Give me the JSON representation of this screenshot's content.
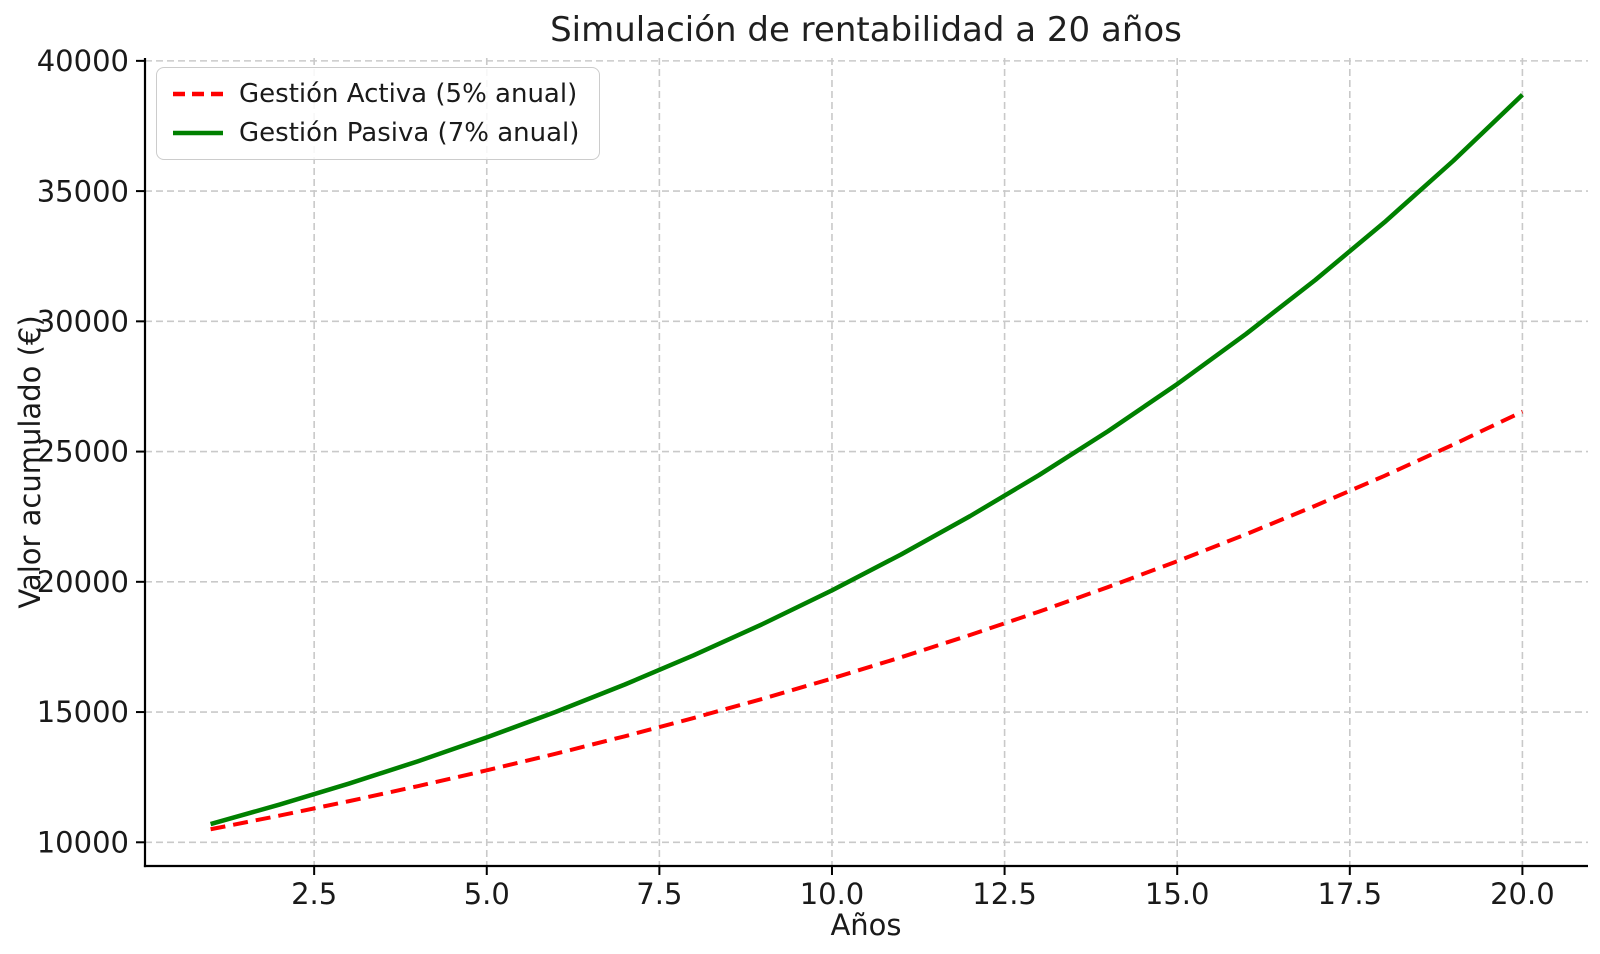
{
  "chart_data": {
    "type": "line",
    "title": "Simulación de rentabilidad a 20 años",
    "xlabel": "Años",
    "ylabel": "Valor acumulado (€)",
    "x": [
      1,
      2,
      3,
      4,
      5,
      6,
      7,
      8,
      9,
      10,
      11,
      12,
      13,
      14,
      15,
      16,
      17,
      18,
      19,
      20
    ],
    "series": [
      {
        "name": "Gestión Activa (5% anual)",
        "color": "#ff0000",
        "line_style": "dashed",
        "line_width": 4,
        "values": [
          10500,
          11025,
          11576,
          12155,
          12763,
          13401,
          14071,
          14775,
          15513,
          16289,
          17103,
          17959,
          18856,
          19799,
          20789,
          21829,
          22920,
          24066,
          25270,
          26533
        ]
      },
      {
        "name": "Gestión Pasiva (7% anual)",
        "color": "#008000",
        "line_style": "solid",
        "line_width": 4.5,
        "values": [
          10700,
          11449,
          12250,
          13108,
          14026,
          15007,
          16058,
          17182,
          18385,
          19672,
          21049,
          22522,
          24098,
          25785,
          27590,
          29522,
          31588,
          33799,
          36165,
          38697
        ]
      }
    ],
    "xlim": [
      0.05,
      20.95
    ],
    "ylim": [
      9090,
      40110
    ],
    "xticks": [
      2.5,
      5,
      7.5,
      10,
      12.5,
      15,
      17.5,
      20
    ],
    "xtick_labels": [
      "2.5",
      "5.0",
      "7.5",
      "10.0",
      "12.5",
      "15.0",
      "17.5",
      "20.0"
    ],
    "yticks": [
      10000,
      15000,
      20000,
      25000,
      30000,
      35000,
      40000
    ],
    "ytick_labels": [
      "10000",
      "15000",
      "20000",
      "25000",
      "30000",
      "35000",
      "40000"
    ],
    "grid": true,
    "grid_color": "#c9c9c9",
    "axis_color": "#000000",
    "text_color": "#1a1a1a",
    "background": "#ffffff",
    "legend_position": "upper-left"
  }
}
